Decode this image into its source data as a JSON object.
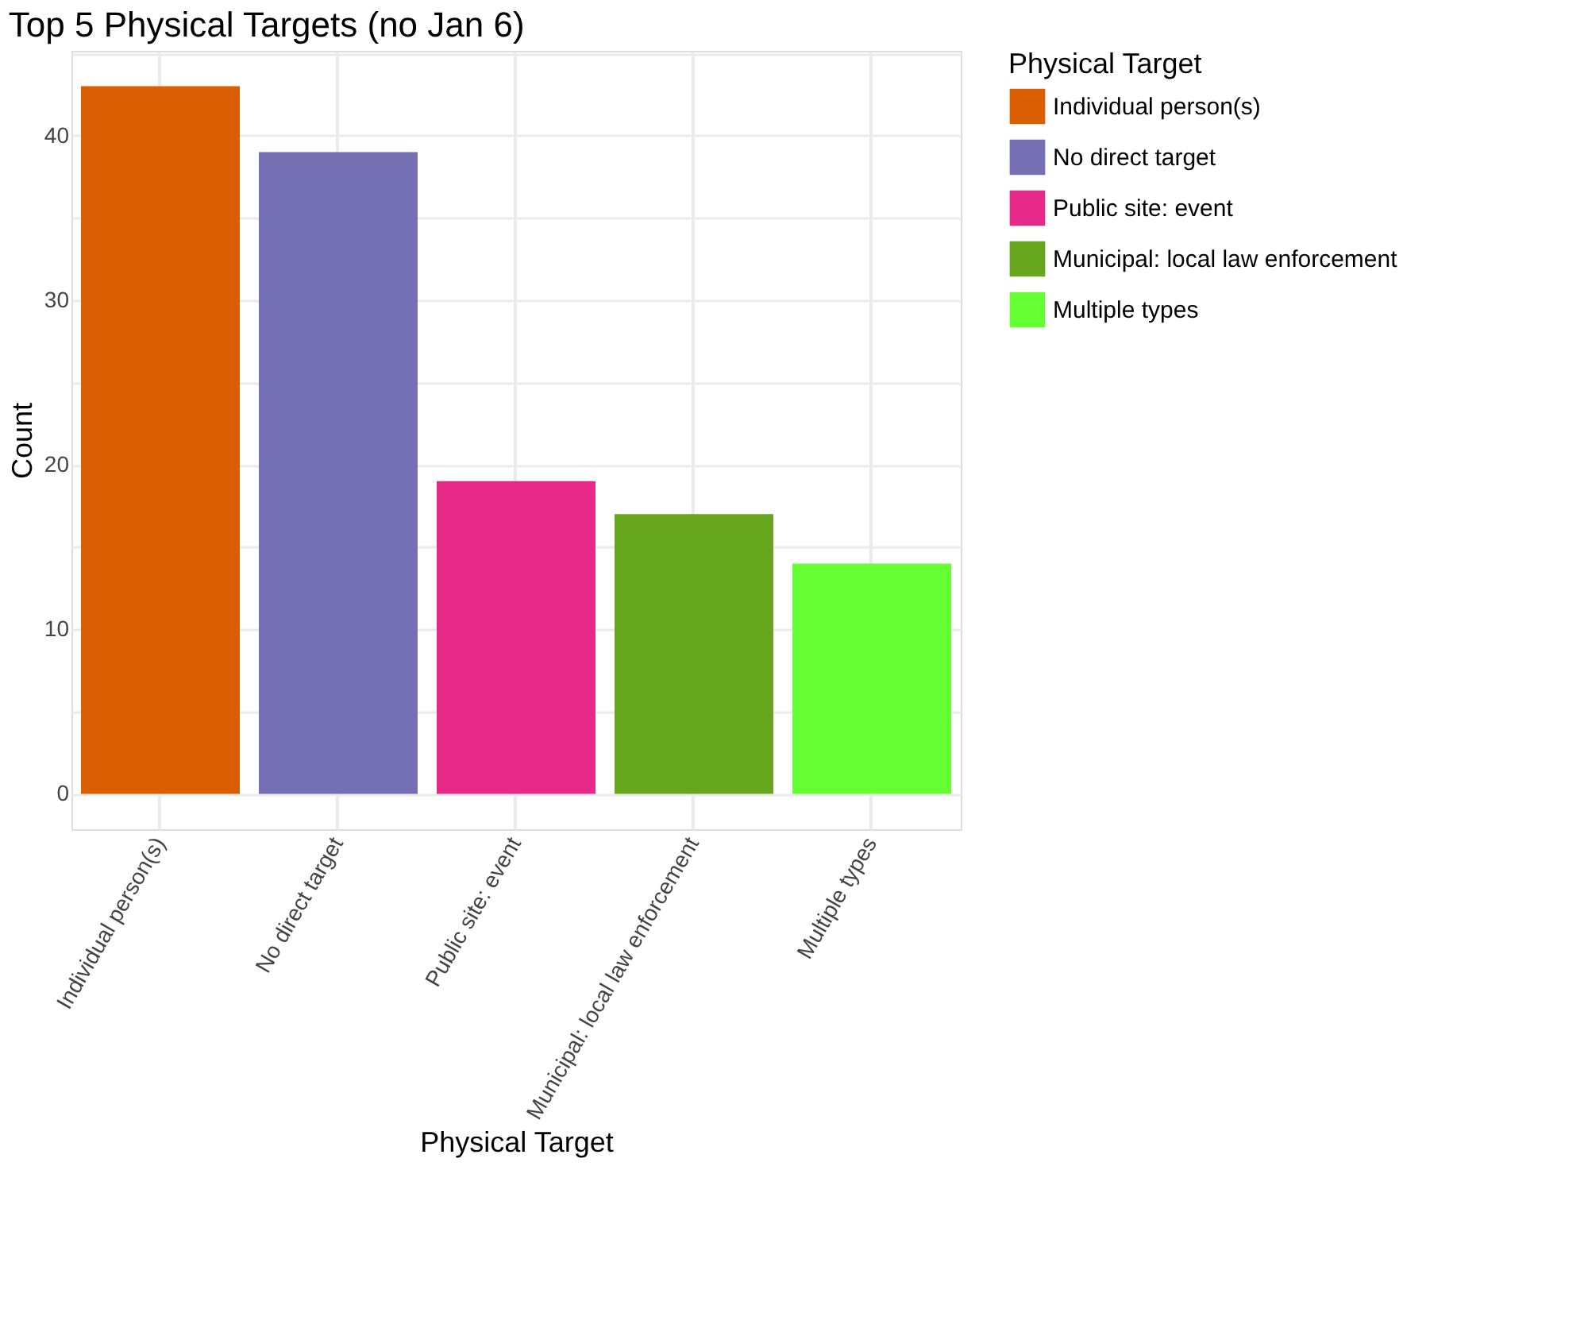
{
  "chart_data": {
    "type": "bar",
    "title": "Top 5 Physical Targets (no Jan 6)",
    "xlabel": "Physical Target",
    "ylabel": "Count",
    "legend_title": "Physical Target",
    "categories": [
      "Individual person(s)",
      "No direct target",
      "Public site: event",
      "Municipal: local law enforcement",
      "Multiple types"
    ],
    "series": [
      {
        "name": "Individual person(s)",
        "color": "#d95f02",
        "values": [
          43,
          null,
          null,
          null,
          null
        ]
      },
      {
        "name": "No direct target",
        "color": "#7570b3",
        "values": [
          null,
          39,
          null,
          null,
          null
        ]
      },
      {
        "name": "Public site: event",
        "color": "#e7298a",
        "values": [
          null,
          null,
          19,
          null,
          null
        ]
      },
      {
        "name": "Municipal: local law enforcement",
        "color": "#66a61e",
        "values": [
          null,
          null,
          null,
          17,
          null
        ]
      },
      {
        "name": "Multiple types",
        "color": "#66ff33",
        "values": [
          null,
          null,
          null,
          null,
          14
        ]
      }
    ],
    "ylim": [
      -2.15,
      45.15
    ],
    "yticks": [
      0,
      {
        "value": 5,
        "label": null
      },
      10,
      {
        "value": 15,
        "label": null
      },
      20,
      {
        "value": 25,
        "label": null
      },
      30,
      {
        "value": 35,
        "label": null
      },
      40,
      {
        "value": 45,
        "label": null
      }
    ],
    "grid": true,
    "legend": "right"
  }
}
